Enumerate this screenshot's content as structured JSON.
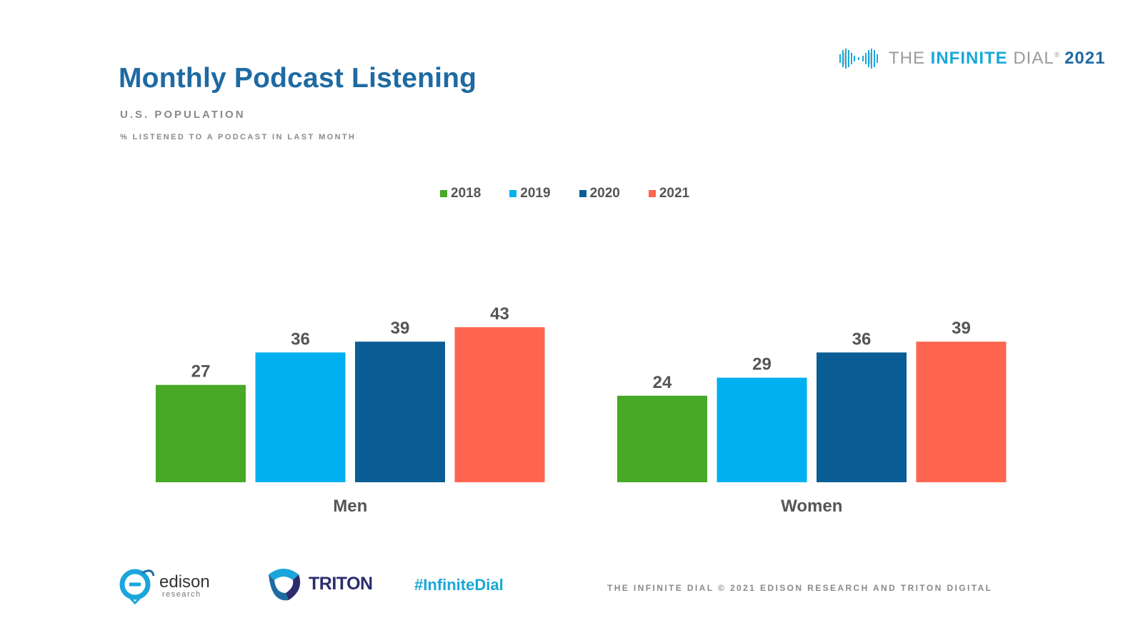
{
  "title": "Monthly Podcast Listening",
  "subtitle": "U.S. POPULATION",
  "caption": "% LISTENED TO A PODCAST IN LAST MONTH",
  "brand": {
    "prefix": "THE",
    "strong": "INFINITE",
    "suffix": "DIAL",
    "reg": "®",
    "year": "2021"
  },
  "footer": {
    "edison_name": "edison",
    "edison_sub": "research",
    "triton_name": "TRITON",
    "hashtag": "#InfiniteDial",
    "copyright": "THE INFINITE DIAL   © 2021 EDISON RESEARCH AND TRITON DIGITAL"
  },
  "colors": {
    "2018": "#47a926",
    "2019": "#00b0ef",
    "2020": "#0b5e95",
    "2021": "#ff664f",
    "title": "#1e6aa2",
    "accent": "#19a8d8"
  },
  "chart_data": {
    "type": "bar",
    "title": "Monthly Podcast Listening",
    "xlabel": "",
    "ylabel": "% listened to a podcast in last month",
    "categories": [
      "Men",
      "Women"
    ],
    "series": [
      {
        "name": "2018",
        "values": [
          27,
          24
        ]
      },
      {
        "name": "2019",
        "values": [
          36,
          29
        ]
      },
      {
        "name": "2020",
        "values": [
          39,
          36
        ]
      },
      {
        "name": "2021",
        "values": [
          43,
          39
        ]
      }
    ],
    "ylim": [
      0,
      43
    ],
    "grid": false,
    "legend": "top-center"
  }
}
